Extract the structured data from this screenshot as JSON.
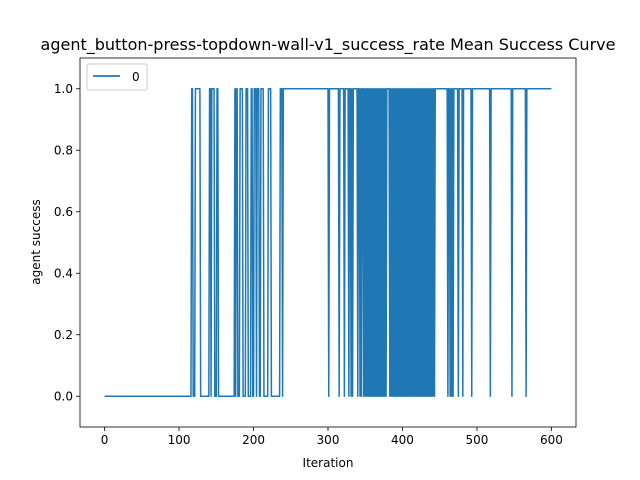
{
  "chart_data": {
    "type": "line",
    "title": "agent_button-press-topdown-wall-v1_success_rate Mean Success Curve",
    "xlabel": "Iteration",
    "ylabel": "agent success",
    "xlim": [
      -33,
      633
    ],
    "ylim": [
      -0.1,
      1.1
    ],
    "xticks": [
      {
        "value": 0,
        "label": "0"
      },
      {
        "value": 100,
        "label": "100"
      },
      {
        "value": 200,
        "label": "200"
      },
      {
        "value": 300,
        "label": "300"
      },
      {
        "value": 400,
        "label": "400"
      },
      {
        "value": 500,
        "label": "500"
      },
      {
        "value": 600,
        "label": "600"
      }
    ],
    "yticks": [
      {
        "value": 0.0,
        "label": "0.0"
      },
      {
        "value": 0.2,
        "label": "0.2"
      },
      {
        "value": 0.4,
        "label": "0.4"
      },
      {
        "value": 0.6,
        "label": "0.6"
      },
      {
        "value": 0.8,
        "label": "0.8"
      },
      {
        "value": 1.0,
        "label": "1.0"
      }
    ],
    "grid": false,
    "legend_position": "top-left",
    "series": [
      {
        "name": "0",
        "color": "#1f77b4",
        "one_segments": [
          [
            117,
            118
          ],
          [
            122,
            128
          ],
          [
            141,
            147
          ],
          [
            151,
            152
          ],
          [
            175,
            178
          ],
          [
            182,
            186
          ],
          [
            190,
            192
          ],
          [
            197,
            198
          ],
          [
            201,
            207
          ],
          [
            210,
            213
          ],
          [
            220,
            224
          ],
          [
            236,
            600
          ]
        ],
        "zero_spikes": [
          130,
          134,
          136,
          143,
          150,
          154,
          176,
          179,
          186,
          193,
          196,
          204,
          209,
          215,
          217,
          224,
          239,
          301,
          315,
          322,
          328,
          331,
          333,
          340,
          343,
          345,
          348,
          350,
          352,
          354,
          356,
          358,
          360,
          362,
          364,
          366,
          368,
          370,
          372,
          374,
          376,
          378,
          383,
          385,
          387,
          389,
          391,
          393,
          395,
          397,
          399,
          401,
          403,
          405,
          407,
          409,
          411,
          413,
          415,
          417,
          419,
          421,
          423,
          425,
          427,
          429,
          431,
          433,
          435,
          437,
          439,
          441,
          443,
          461,
          464,
          466,
          468,
          475,
          481,
          493,
          518,
          547,
          566
        ]
      }
    ]
  }
}
